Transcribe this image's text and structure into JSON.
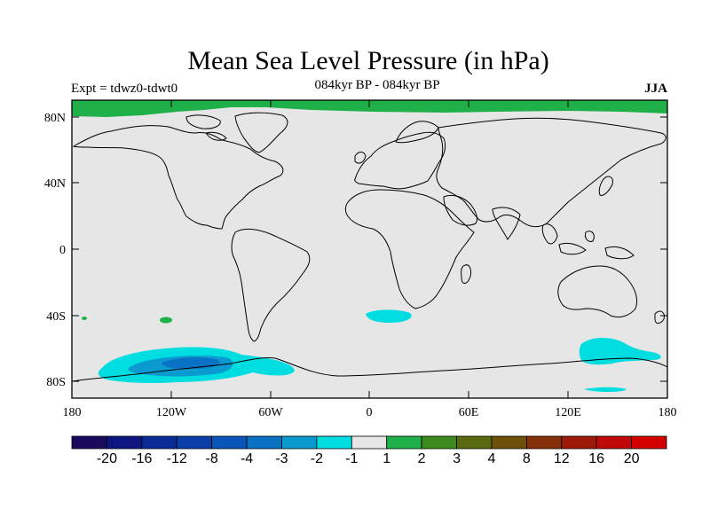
{
  "title": "Mean Sea Level Pressure (in hPa)",
  "subtitle": "084kyr BP - 084kyr BP",
  "expt": "Expt = tdwz0-tdwt0",
  "season": "JJA",
  "lat_labels": [
    "80N",
    "40N",
    "0",
    "40S",
    "80S"
  ],
  "lon_labels": [
    "180",
    "120W",
    "60W",
    "0",
    "60E",
    "120E",
    "180"
  ],
  "colorbar": {
    "labels": [
      "-20",
      "-16",
      "-12",
      "-8",
      "-4",
      "-3",
      "-2",
      "-1",
      "1",
      "2",
      "3",
      "4",
      "8",
      "12",
      "16",
      "20"
    ],
    "colors": [
      "#1a0a5e",
      "#0d1580",
      "#0a2a96",
      "#0a3fa8",
      "#0a55b8",
      "#0a72c4",
      "#0a9ad0",
      "#00dde0",
      "#e6e6e6",
      "#1fb04a",
      "#3d8a1e",
      "#5a6a10",
      "#6e500a",
      "#853008",
      "#a01a0a",
      "#c00a0a",
      "#d40000"
    ]
  },
  "colors": {
    "background": "#e6e6e6",
    "positive_1_2": "#1fb04a",
    "negative_2_1": "#00dde0",
    "negative_3_2": "#0a9ad0",
    "negative_4_3": "#0a72c4"
  }
}
